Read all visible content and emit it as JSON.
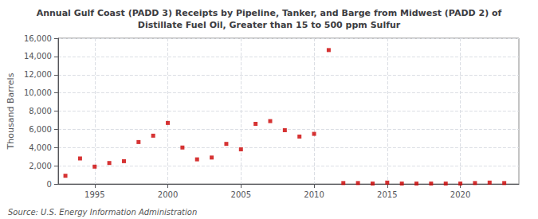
{
  "chart_data": {
    "type": "scatter",
    "title": "Annual Gulf Coast (PADD 3) Receipts by Pipeline, Tanker, and Barge from Midwest (PADD 2) of\nDistillate Fuel Oil, Greater than 15 to 500 ppm Sulfur",
    "y_label": "Thousand Barrels",
    "annotations": [
      "Source: U.S. Energy Information Administration"
    ],
    "x": [
      1993,
      1994,
      1995,
      1996,
      1997,
      1998,
      1999,
      2000,
      2001,
      2002,
      2003,
      2004,
      2005,
      2006,
      2007,
      2008,
      2009,
      2010,
      2011,
      2012,
      2013,
      2014,
      2015,
      2016,
      2017,
      2018,
      2019,
      2020,
      2021,
      2022,
      2023
    ],
    "values": [
      900,
      2800,
      1900,
      2300,
      2500,
      4600,
      5300,
      6700,
      4000,
      2700,
      2900,
      4400,
      3800,
      6600,
      6900,
      5900,
      5200,
      5500,
      14700,
      100,
      100,
      50,
      150,
      50,
      50,
      50,
      50,
      50,
      100,
      150,
      100
    ],
    "color": "#cc0000",
    "marker": "square",
    "xlim": [
      1992.5,
      2024
    ],
    "xticks": [
      1995,
      2000,
      2005,
      2010,
      2015,
      2020
    ],
    "ylim": [
      0,
      16000
    ],
    "yticks": [
      0,
      {
        "value": 2000,
        "label": "2,000"
      },
      {
        "value": 4000,
        "label": "4,000"
      },
      {
        "value": 6000,
        "label": "6,000"
      },
      {
        "value": 8000,
        "label": "8,000"
      },
      {
        "value": 10000,
        "label": "10,000"
      },
      {
        "value": 12000,
        "label": "12,000"
      },
      {
        "value": 14000,
        "label": "14,000"
      },
      {
        "value": 16000,
        "label": "16,000"
      }
    ],
    "grid": true
  }
}
